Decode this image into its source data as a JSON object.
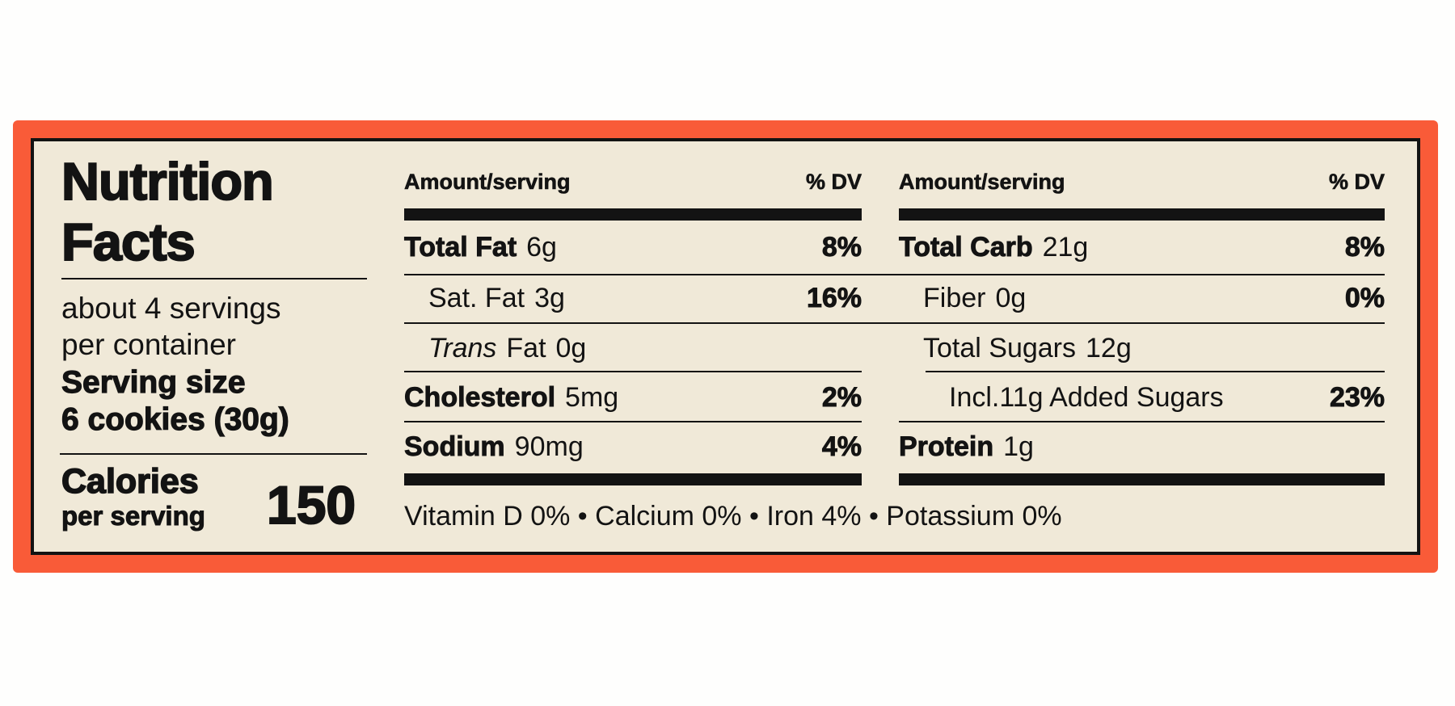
{
  "label": {
    "colors": {
      "accent": "#F95B38",
      "panel": "#F0E9D8",
      "ink": "#131313",
      "page_bg": "#FEFEFD"
    },
    "title": {
      "line1": "Nutrition",
      "line2": "Facts"
    },
    "servings": {
      "line1": "about 4 servings",
      "line2": "per container"
    },
    "serving_size": {
      "line1": "Serving size",
      "line2": "6 cookies (30g)"
    },
    "calories": {
      "word": "Calories",
      "sub": "per serving",
      "value": "150"
    },
    "table_headers": {
      "amount": "Amount/serving",
      "dv": "% DV"
    },
    "mid_rows": [
      {
        "name": "Total Fat",
        "value": "6g",
        "dv": "8%"
      },
      {
        "name": "Sat. Fat",
        "value": "3g",
        "dv": "16%"
      },
      {
        "name_italic": "Trans",
        "name": "Fat",
        "value": "0g",
        "dv": ""
      },
      {
        "name": "Cholesterol",
        "value": "5mg",
        "dv": "2%"
      },
      {
        "name": "Sodium",
        "value": "90mg",
        "dv": "4%"
      }
    ],
    "right_rows": [
      {
        "name": "Total Carb",
        "value": "21g",
        "dv": "8%"
      },
      {
        "name": "Fiber",
        "value": "0g",
        "dv": "0%"
      },
      {
        "name": "Total Sugars",
        "value": "12g",
        "dv": ""
      },
      {
        "name": "Incl.11g Added Sugars",
        "value": "",
        "dv": "23%"
      },
      {
        "name": "Protein",
        "value": "1g",
        "dv": ""
      }
    ],
    "footer": "Vitamin D 0% • Calcium 0% • Iron 4% • Potassium 0%"
  }
}
